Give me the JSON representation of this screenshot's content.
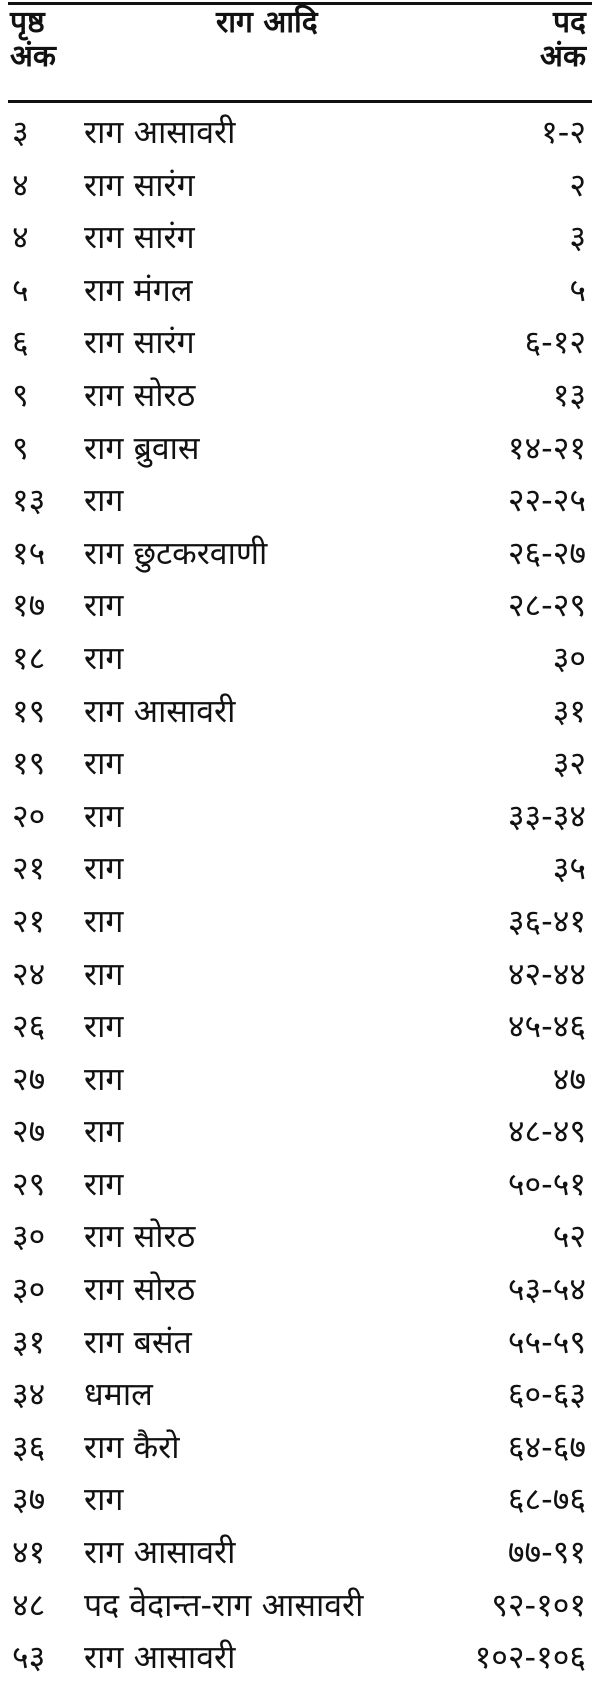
{
  "header": {
    "page_col": [
      "पृष्ठ",
      "अंक"
    ],
    "raga_col": "राग आदि",
    "pad_col": [
      "पद",
      "अंक"
    ]
  },
  "rows": [
    {
      "page": "३",
      "raga": "राग आसावरी",
      "pad": "१-२"
    },
    {
      "page": "४",
      "raga": "राग सारंग",
      "pad": "२"
    },
    {
      "page": "४",
      "raga": "राग सारंग",
      "pad": "३"
    },
    {
      "page": "५",
      "raga": "राग मंगल",
      "pad": "५"
    },
    {
      "page": "६",
      "raga": "राग सारंग",
      "pad": "६-१२"
    },
    {
      "page": "९",
      "raga": "राग सोरठ",
      "pad": "१३"
    },
    {
      "page": "९",
      "raga": "राग ब्रुवास",
      "pad": "१४-२१"
    },
    {
      "page": "१३",
      "raga": "राग",
      "pad": "२२-२५"
    },
    {
      "page": "१५",
      "raga": "राग छुटकरवाणी",
      "pad": "२६-२७"
    },
    {
      "page": "१७",
      "raga": "राग",
      "pad": "२८-२९"
    },
    {
      "page": "१८",
      "raga": "राग",
      "pad": "३०"
    },
    {
      "page": "१९",
      "raga": "राग आसावरी",
      "pad": "३१"
    },
    {
      "page": "१९",
      "raga": "राग",
      "pad": "३२"
    },
    {
      "page": "२०",
      "raga": "राग",
      "pad": "३३-३४"
    },
    {
      "page": "२१",
      "raga": "राग",
      "pad": "३५"
    },
    {
      "page": "२१",
      "raga": "राग",
      "pad": "३६-४१"
    },
    {
      "page": "२४",
      "raga": "राग",
      "pad": "४२-४४"
    },
    {
      "page": "२६",
      "raga": "राग",
      "pad": "४५-४६"
    },
    {
      "page": "२७",
      "raga": "राग",
      "pad": "४७"
    },
    {
      "page": "२७",
      "raga": "राग",
      "pad": "४८-४९"
    },
    {
      "page": "२९",
      "raga": "राग",
      "pad": "५०-५१"
    },
    {
      "page": "३०",
      "raga": "राग सोरठ",
      "pad": "५२"
    },
    {
      "page": "३०",
      "raga": "राग सोरठ",
      "pad": "५३-५४"
    },
    {
      "page": "३१",
      "raga": "राग बसंत",
      "pad": "५५-५९"
    },
    {
      "page": "३४",
      "raga": "धमाल",
      "pad": "६०-६३"
    },
    {
      "page": "३६",
      "raga": "राग कैरो",
      "pad": "६४-६७"
    },
    {
      "page": "३७",
      "raga": "राग",
      "pad": "६८-७६"
    },
    {
      "page": "४१",
      "raga": "राग आसावरी",
      "pad": "७७-९१"
    },
    {
      "page": "४८",
      "raga": "पद वेदान्त-राग आसावरी",
      "pad": "९२-१०१"
    },
    {
      "page": "५३",
      "raga": "राग आसावरी",
      "pad": "१०२-१०६"
    }
  ]
}
